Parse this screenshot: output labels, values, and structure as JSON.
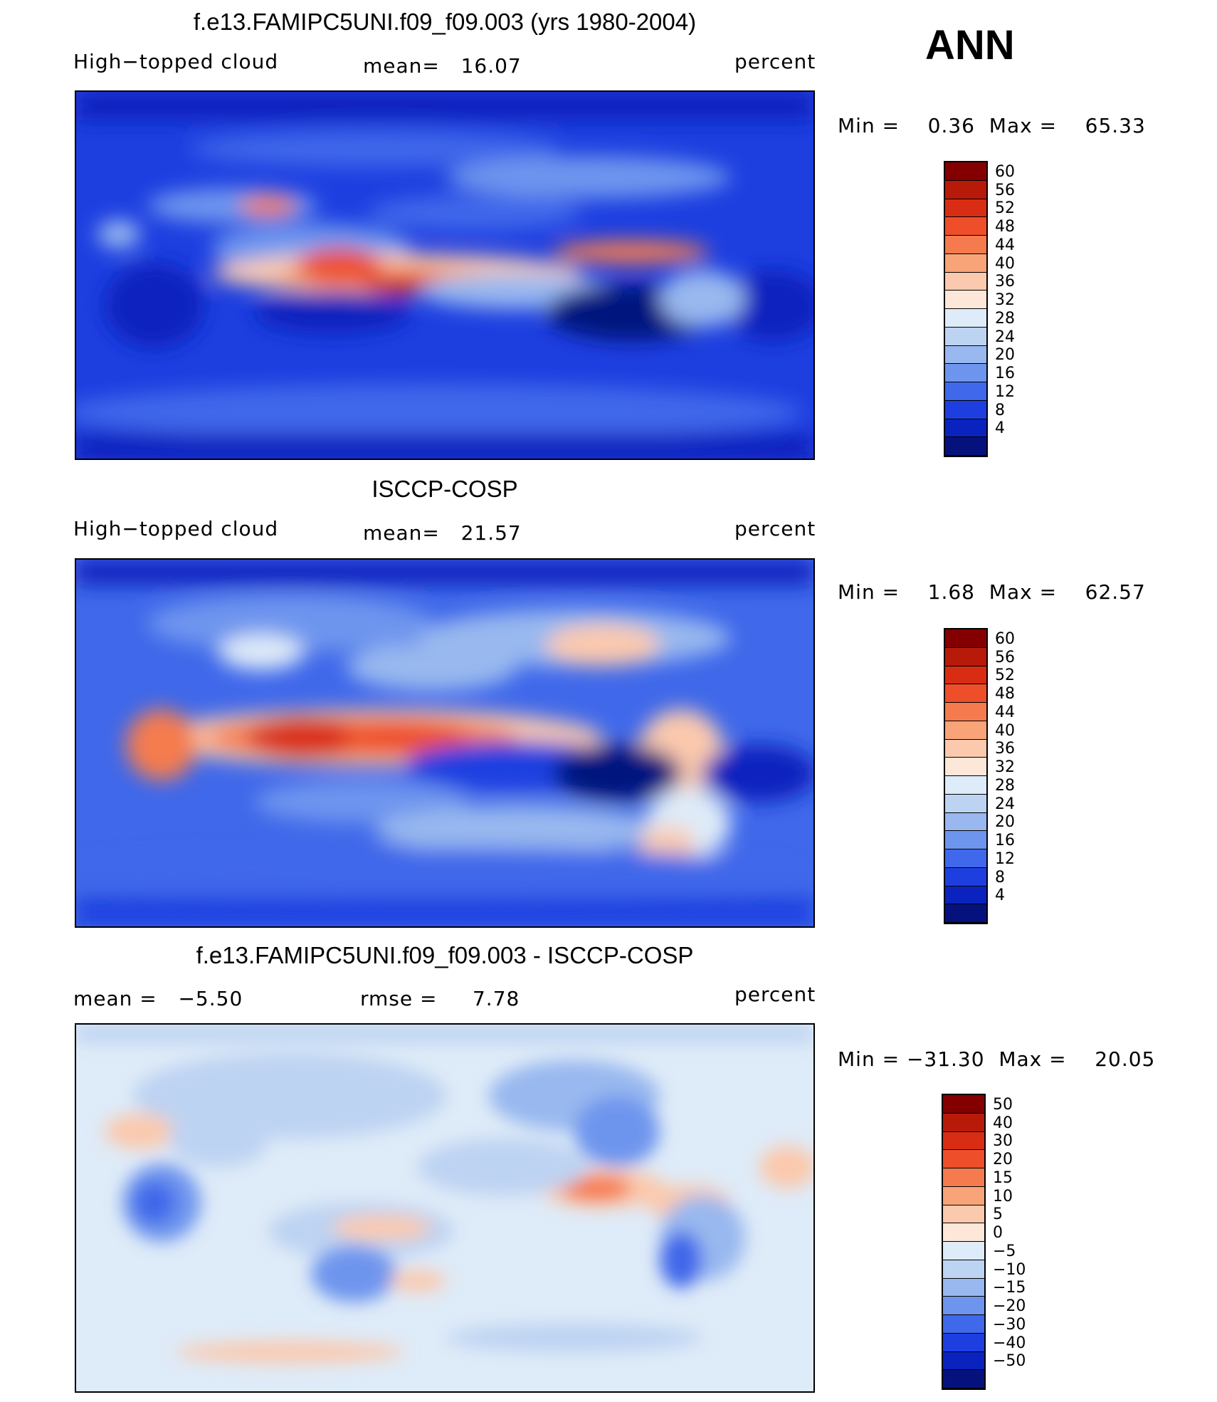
{
  "season": "ANN",
  "panels": [
    {
      "title": "f.e13.FAMIPC5UNI.f09_f09.003 (yrs 1980-2004)",
      "left_label": "High−topped cloud",
      "center_label": "mean=   16.07",
      "right_label": "percent",
      "minmax": "Min =    0.36  Max =    65.33",
      "colorbar": {
        "labels": [
          "60",
          "56",
          "52",
          "48",
          "44",
          "40",
          "36",
          "32",
          "28",
          "24",
          "20",
          "16",
          "12",
          "8",
          "4"
        ],
        "colors": [
          "#840000",
          "#b81a0a",
          "#d92d13",
          "#ee4f2a",
          "#f57b4e",
          "#f8a478",
          "#fbc9ad",
          "#fce7d8",
          "#deebf8",
          "#bdd3f2",
          "#98b8ef",
          "#6e95ee",
          "#3f68ea",
          "#1d3fe0",
          "#0a23be",
          "#05127e"
        ]
      }
    },
    {
      "title": "ISCCP-COSP",
      "left_label": "High−topped cloud",
      "center_label": "mean=   21.57",
      "right_label": "percent",
      "minmax": "Min =    1.68  Max =    62.57",
      "colorbar": {
        "labels": [
          "60",
          "56",
          "52",
          "48",
          "44",
          "40",
          "36",
          "32",
          "28",
          "24",
          "20",
          "16",
          "12",
          "8",
          "4"
        ],
        "colors": [
          "#840000",
          "#b81a0a",
          "#d92d13",
          "#ee4f2a",
          "#f57b4e",
          "#f8a478",
          "#fbc9ad",
          "#fce7d8",
          "#deebf8",
          "#bdd3f2",
          "#98b8ef",
          "#6e95ee",
          "#3f68ea",
          "#1d3fe0",
          "#0a23be",
          "#05127e"
        ]
      }
    },
    {
      "title": "f.e13.FAMIPC5UNI.f09_f09.003 - ISCCP-COSP",
      "left_label": "mean =   −5.50",
      "center_label": "rmse =     7.78",
      "right_label": "percent",
      "minmax": "Min = −31.30  Max =    20.05",
      "colorbar": {
        "labels": [
          "50",
          "40",
          "30",
          "20",
          "15",
          "10",
          "5",
          "0",
          "−5",
          "−10",
          "−15",
          "−20",
          "−30",
          "−40",
          "−50"
        ],
        "colors": [
          "#840000",
          "#b81a0a",
          "#d92d13",
          "#ee4f2a",
          "#f57b4e",
          "#f8a478",
          "#fbc9ad",
          "#fce7d8",
          "#deebf8",
          "#bdd3f2",
          "#98b8ef",
          "#6e95ee",
          "#3f68ea",
          "#1d3fe0",
          "#0a23be",
          "#05127e"
        ]
      }
    }
  ]
}
